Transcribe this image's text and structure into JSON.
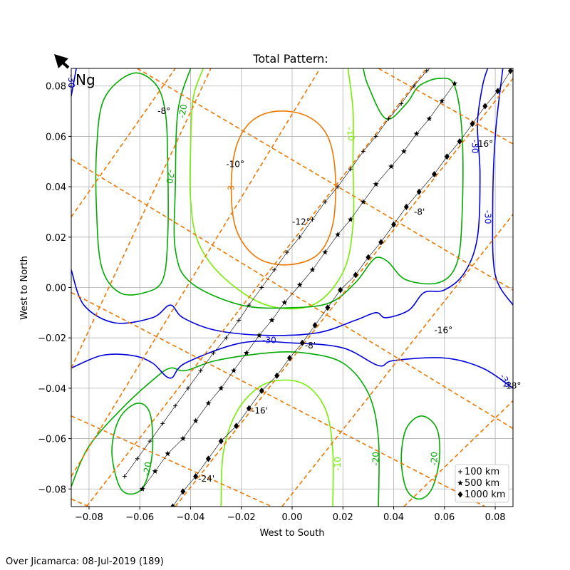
{
  "chart_data": {
    "type": "line",
    "title": "Total Pattern:",
    "xlabel": "West to South",
    "ylabel": "West to North",
    "xlim": [
      -0.087,
      0.087
    ],
    "ylim": [
      -0.087,
      0.087
    ],
    "xticks": [
      -0.08,
      -0.06,
      -0.04,
      -0.02,
      0.0,
      0.02,
      0.04,
      0.06,
      0.08
    ],
    "yticks": [
      -0.08,
      -0.06,
      -0.04,
      -0.02,
      0.0,
      0.02,
      0.04,
      0.06,
      0.08
    ],
    "grid": true,
    "corner_label": "Ng",
    "footer": "Over Jicamarca: 08-Jul-2019 (189)",
    "colors": {
      "c30": "#0000dd",
      "c20": "#00aa00",
      "c10": "#77ee00",
      "c3": "#ee7700",
      "grid_lines": "#ee7700",
      "track": "#000000"
    },
    "contour_labels": [
      {
        "text": "-30",
        "x": -0.087,
        "y": 0.082,
        "color": "#0000dd",
        "rot": 90
      },
      {
        "text": "-20",
        "x": -0.043,
        "y": 0.07,
        "color": "#00aa00",
        "rot": -80
      },
      {
        "text": "-20",
        "x": -0.048,
        "y": 0.044,
        "color": "#00aa00",
        "rot": 100
      },
      {
        "text": "-10",
        "x": 0.023,
        "y": 0.061,
        "color": "#77ee00",
        "rot": 80
      },
      {
        "text": "-3",
        "x": -0.024,
        "y": 0.039,
        "color": "#ee7700",
        "rot": -90
      },
      {
        "text": "-30",
        "x": 0.072,
        "y": 0.056,
        "color": "#0000dd",
        "rot": 90
      },
      {
        "text": "-30",
        "x": 0.077,
        "y": 0.028,
        "color": "#0000dd",
        "rot": 90
      },
      {
        "text": "-30",
        "x": -0.009,
        "y": -0.021,
        "color": "#0000dd",
        "rot": 0
      },
      {
        "text": "-10",
        "x": 0.018,
        "y": -0.07,
        "color": "#77ee00",
        "rot": -90
      },
      {
        "text": "-20",
        "x": 0.033,
        "y": -0.068,
        "color": "#00aa00",
        "rot": -90
      },
      {
        "text": "-20",
        "x": 0.056,
        "y": -0.068,
        "color": "#00aa00",
        "rot": -90
      },
      {
        "text": "-20",
        "x": -0.057,
        "y": -0.072,
        "color": "#00aa00",
        "rot": -80
      },
      {
        "text": "-30",
        "x": 0.084,
        "y": -0.037,
        "color": "#0000dd",
        "rot": 60
      }
    ],
    "annotations": [
      {
        "text": "-8°",
        "x": -0.053,
        "y": 0.07
      },
      {
        "text": "-10°",
        "x": -0.026,
        "y": 0.049
      },
      {
        "text": "-12°",
        "x": 0.0,
        "y": 0.026
      },
      {
        "text": "-16°",
        "x": 0.072,
        "y": 0.057
      },
      {
        "text": "-8'",
        "x": 0.048,
        "y": 0.03
      },
      {
        "text": "-16°",
        "x": 0.056,
        "y": -0.017
      },
      {
        "text": "-18°",
        "x": 0.083,
        "y": -0.039
      },
      {
        "text": "-8'",
        "x": 0.005,
        "y": -0.023
      },
      {
        "text": "-16'",
        "x": -0.016,
        "y": -0.049
      },
      {
        "text": "-24'",
        "x": -0.037,
        "y": -0.076
      }
    ],
    "dashed_lines": [
      {
        "x1": -0.087,
        "y1": -0.032,
        "x2": -0.032,
        "y2": 0.087
      },
      {
        "x1": -0.087,
        "y1": 0.028,
        "x2": -0.046,
        "y2": 0.087
      },
      {
        "x1": -0.087,
        "y1": -0.075,
        "x2": 0.011,
        "y2": 0.087
      },
      {
        "x1": -0.081,
        "y1": -0.087,
        "x2": 0.053,
        "y2": 0.087
      },
      {
        "x1": -0.046,
        "y1": -0.087,
        "x2": 0.087,
        "y2": 0.083
      },
      {
        "x1": -0.004,
        "y1": -0.087,
        "x2": 0.087,
        "y2": 0.029
      },
      {
        "x1": 0.044,
        "y1": -0.087,
        "x2": 0.087,
        "y2": -0.045
      },
      {
        "x1": -0.061,
        "y1": 0.087,
        "x2": 0.087,
        "y2": -0.001
      },
      {
        "x1": -0.087,
        "y1": 0.051,
        "x2": 0.087,
        "y2": -0.056
      },
      {
        "x1": -0.087,
        "y1": -0.002,
        "x2": 0.076,
        "y2": -0.087
      },
      {
        "x1": -0.087,
        "y1": -0.051,
        "x2": -0.008,
        "y2": -0.087
      },
      {
        "x1": -0.087,
        "y1": -0.084,
        "x2": -0.08,
        "y2": -0.087
      },
      {
        "x1": 0.034,
        "y1": 0.087,
        "x2": 0.087,
        "y2": 0.057
      }
    ],
    "contours": [
      {
        "level": "-3",
        "color": "#ee7700",
        "closed": true,
        "points": [
          [
            -0.006,
            0.07
          ],
          [
            0.006,
            0.068
          ],
          [
            0.014,
            0.06
          ],
          [
            0.017,
            0.045
          ],
          [
            0.016,
            0.025
          ],
          [
            0.01,
            0.013
          ],
          [
            -0.002,
            0.009
          ],
          [
            -0.014,
            0.012
          ],
          [
            -0.022,
            0.023
          ],
          [
            -0.024,
            0.04
          ],
          [
            -0.022,
            0.056
          ],
          [
            -0.016,
            0.066
          ]
        ]
      },
      {
        "level": "-10",
        "color": "#77ee00",
        "closed": false,
        "points": [
          [
            -0.035,
            0.087
          ],
          [
            -0.039,
            0.075
          ],
          [
            -0.04,
            0.055
          ],
          [
            -0.04,
            0.035
          ],
          [
            -0.037,
            0.018
          ],
          [
            -0.027,
            0.004
          ],
          [
            -0.01,
            -0.007
          ],
          [
            0.008,
            -0.007
          ],
          [
            0.02,
            0.006
          ],
          [
            0.024,
            0.025
          ],
          [
            0.024,
            0.05
          ],
          [
            0.024,
            0.07
          ],
          [
            0.022,
            0.087
          ]
        ]
      },
      {
        "level": "-10",
        "color": "#77ee00",
        "closed": false,
        "points": [
          [
            -0.028,
            -0.087
          ],
          [
            -0.027,
            -0.065
          ],
          [
            -0.021,
            -0.048
          ],
          [
            -0.01,
            -0.038
          ],
          [
            0.004,
            -0.038
          ],
          [
            0.013,
            -0.048
          ],
          [
            0.016,
            -0.065
          ],
          [
            0.016,
            -0.087
          ]
        ]
      },
      {
        "level": "-20",
        "color": "#00aa00",
        "closed": true,
        "points": [
          [
            -0.063,
            0.085
          ],
          [
            -0.054,
            0.081
          ],
          [
            -0.05,
            0.07
          ],
          [
            -0.049,
            0.05
          ],
          [
            -0.049,
            0.02
          ],
          [
            -0.051,
            0.003
          ],
          [
            -0.058,
            -0.002
          ],
          [
            -0.068,
            -0.002
          ],
          [
            -0.075,
            0.008
          ],
          [
            -0.077,
            0.03
          ],
          [
            -0.077,
            0.055
          ],
          [
            -0.074,
            0.075
          ]
        ]
      },
      {
        "level": "-20",
        "color": "#00aa00",
        "closed": false,
        "points": [
          [
            -0.04,
            0.087
          ],
          [
            -0.045,
            0.07
          ],
          [
            -0.046,
            0.04
          ],
          [
            -0.046,
            0.015
          ],
          [
            -0.04,
            0.002
          ],
          [
            -0.02,
            -0.007
          ],
          [
            0.0,
            -0.008
          ],
          [
            0.015,
            -0.006
          ],
          [
            0.025,
            0.002
          ],
          [
            0.031,
            0.01
          ],
          [
            0.034,
            0.012
          ],
          [
            0.038,
            0.01
          ],
          [
            0.045,
            0.003
          ],
          [
            0.058,
            0.002
          ],
          [
            0.065,
            0.01
          ],
          [
            0.067,
            0.03
          ],
          [
            0.067,
            0.06
          ],
          [
            0.064,
            0.08
          ],
          [
            0.058,
            0.083
          ],
          [
            0.05,
            0.08
          ],
          [
            0.045,
            0.073
          ],
          [
            0.037,
            0.067
          ],
          [
            0.03,
            0.08
          ],
          [
            0.028,
            0.087
          ]
        ]
      },
      {
        "level": "-20",
        "color": "#00aa00",
        "closed": false,
        "points": [
          [
            -0.087,
            -0.079
          ],
          [
            -0.08,
            -0.063
          ],
          [
            -0.066,
            -0.047
          ],
          [
            -0.054,
            -0.036
          ],
          [
            -0.048,
            -0.032
          ],
          [
            -0.042,
            -0.033
          ],
          [
            -0.03,
            -0.029
          ],
          [
            -0.01,
            -0.026
          ],
          [
            0.005,
            -0.026
          ],
          [
            0.02,
            -0.03
          ],
          [
            0.03,
            -0.042
          ],
          [
            0.034,
            -0.06
          ],
          [
            0.034,
            -0.087
          ]
        ]
      },
      {
        "level": "-20",
        "color": "#00aa00",
        "closed": true,
        "points": [
          [
            -0.061,
            -0.046
          ],
          [
            -0.056,
            -0.05
          ],
          [
            -0.055,
            -0.065
          ],
          [
            -0.058,
            -0.078
          ],
          [
            -0.063,
            -0.082
          ],
          [
            -0.068,
            -0.079
          ],
          [
            -0.071,
            -0.065
          ],
          [
            -0.068,
            -0.052
          ]
        ]
      },
      {
        "level": "-20",
        "color": "#00aa00",
        "closed": true,
        "points": [
          [
            0.051,
            -0.051
          ],
          [
            0.057,
            -0.056
          ],
          [
            0.058,
            -0.068
          ],
          [
            0.055,
            -0.08
          ],
          [
            0.05,
            -0.084
          ],
          [
            0.045,
            -0.08
          ],
          [
            0.043,
            -0.068
          ],
          [
            0.045,
            -0.056
          ]
        ]
      },
      {
        "level": "-30",
        "color": "#0000dd",
        "closed": false,
        "points": [
          [
            -0.087,
            0.007
          ],
          [
            -0.082,
            -0.007
          ],
          [
            -0.07,
            -0.014
          ],
          [
            -0.055,
            -0.012
          ],
          [
            -0.048,
            -0.007
          ],
          [
            -0.043,
            -0.012
          ],
          [
            -0.03,
            -0.017
          ],
          [
            -0.01,
            -0.019
          ],
          [
            0.01,
            -0.018
          ],
          [
            0.025,
            -0.013
          ],
          [
            0.033,
            -0.01
          ],
          [
            0.037,
            -0.012
          ],
          [
            0.046,
            -0.009
          ],
          [
            0.052,
            -0.002
          ],
          [
            0.06,
            -0.001
          ],
          [
            0.068,
            0.006
          ],
          [
            0.073,
            0.02
          ],
          [
            0.074,
            0.045
          ],
          [
            0.073,
            0.065
          ],
          [
            0.075,
            0.08
          ],
          [
            0.077,
            0.087
          ]
        ]
      },
      {
        "level": "-30",
        "color": "#0000dd",
        "closed": false,
        "points": [
          [
            0.083,
            0.087
          ],
          [
            0.08,
            0.06
          ],
          [
            0.079,
            0.03
          ],
          [
            0.08,
            0.005
          ],
          [
            0.087,
            -0.007
          ]
        ]
      },
      {
        "level": "-30",
        "color": "#0000dd",
        "closed": false,
        "points": [
          [
            -0.087,
            -0.032
          ],
          [
            -0.075,
            -0.027
          ],
          [
            -0.063,
            -0.027
          ],
          [
            -0.055,
            -0.03
          ],
          [
            -0.048,
            -0.036
          ],
          [
            -0.042,
            -0.03
          ],
          [
            -0.02,
            -0.022
          ],
          [
            0.0,
            -0.022
          ],
          [
            0.02,
            -0.024
          ],
          [
            0.034,
            -0.031
          ],
          [
            0.04,
            -0.029
          ],
          [
            0.06,
            -0.028
          ],
          [
            0.075,
            -0.032
          ],
          [
            0.087,
            -0.04
          ]
        ]
      },
      {
        "level": "-30",
        "color": "#0000dd",
        "closed": false,
        "points": [
          [
            -0.087,
            0.076
          ],
          [
            -0.085,
            0.087
          ]
        ]
      }
    ],
    "series": [
      {
        "name": "100 km",
        "marker": "plus",
        "x": [
          -0.066,
          -0.061,
          -0.056,
          -0.051,
          -0.046,
          -0.041,
          -0.036,
          -0.031,
          -0.026,
          -0.021,
          -0.017,
          -0.012,
          -0.007,
          -0.002,
          0.003,
          0.008,
          0.013,
          0.018,
          0.023,
          0.028,
          0.033,
          0.038,
          0.043,
          0.048,
          0.053,
          0.058
        ],
        "y": [
          -0.075,
          -0.068,
          -0.061,
          -0.054,
          -0.047,
          -0.04,
          -0.033,
          -0.026,
          -0.02,
          -0.013,
          -0.007,
          0.0,
          0.007,
          0.014,
          0.02,
          0.027,
          0.034,
          0.04,
          0.047,
          0.054,
          0.06,
          0.067,
          0.073,
          0.08,
          0.086,
          0.09
        ]
      },
      {
        "name": "500 km",
        "marker": "star",
        "x": [
          -0.059,
          -0.054,
          -0.049,
          -0.043,
          -0.038,
          -0.033,
          -0.028,
          -0.023,
          -0.018,
          -0.013,
          -0.008,
          -0.003,
          0.003,
          0.008,
          0.013,
          0.018,
          0.023,
          0.028,
          0.033,
          0.039,
          0.044,
          0.049,
          0.054,
          0.059,
          0.064
        ],
        "y": [
          -0.08,
          -0.073,
          -0.066,
          -0.06,
          -0.053,
          -0.046,
          -0.04,
          -0.033,
          -0.026,
          -0.019,
          -0.013,
          -0.006,
          0.001,
          0.007,
          0.014,
          0.021,
          0.027,
          0.034,
          0.041,
          0.048,
          0.054,
          0.061,
          0.067,
          0.074,
          0.081
        ]
      },
      {
        "name": "1000 km",
        "marker": "diamond",
        "x": [
          -0.047,
          -0.043,
          -0.038,
          -0.033,
          -0.028,
          -0.022,
          -0.017,
          -0.012,
          -0.006,
          -0.001,
          0.004,
          0.009,
          0.014,
          0.019,
          0.025,
          0.03,
          0.035,
          0.04,
          0.045,
          0.05,
          0.056,
          0.061,
          0.066,
          0.071,
          0.076,
          0.081,
          0.086
        ],
        "y": [
          -0.087,
          -0.081,
          -0.075,
          -0.068,
          -0.061,
          -0.055,
          -0.048,
          -0.041,
          -0.035,
          -0.028,
          -0.022,
          -0.015,
          -0.008,
          -0.001,
          0.005,
          0.012,
          0.018,
          0.025,
          0.032,
          0.038,
          0.045,
          0.052,
          0.058,
          0.065,
          0.072,
          0.078,
          0.086
        ]
      }
    ],
    "legend": {
      "position": "lower-right",
      "entries": [
        "100 km",
        "500 km",
        "1000 km"
      ]
    }
  }
}
